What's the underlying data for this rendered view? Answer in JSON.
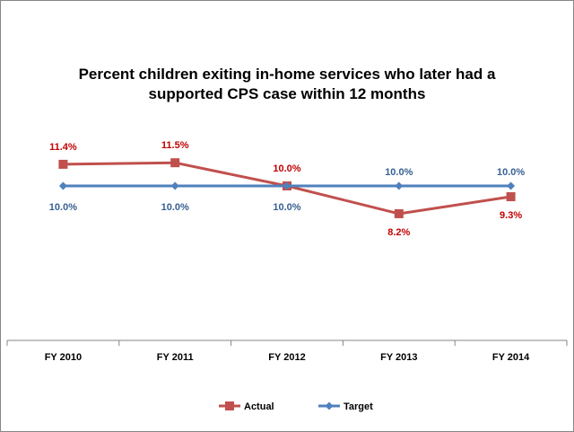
{
  "chart_data": {
    "type": "line",
    "title": "Percent children exiting in-home services who later had a supported CPS case within 12 months",
    "categories": [
      "FY 2010",
      "FY 2011",
      "FY 2012",
      "FY 2013",
      "FY 2014"
    ],
    "series": [
      {
        "name": "Actual",
        "values": [
          11.4,
          11.5,
          10.0,
          8.2,
          9.3
        ],
        "labels": [
          "11.4%",
          "11.5%",
          "10.0%",
          "8.2%",
          "9.3%"
        ],
        "color": "#C0504D",
        "label_color": "#C00000",
        "marker": "square"
      },
      {
        "name": "Target",
        "values": [
          10.0,
          10.0,
          10.0,
          10.0,
          10.0
        ],
        "labels": [
          "10.0%",
          "10.0%",
          "10.0%",
          "10.0%",
          "10.0%"
        ],
        "color": "#4F81BD",
        "label_color": "#376092",
        "marker": "diamond"
      }
    ],
    "xlabel": "",
    "ylabel": "",
    "ylim": [
      0,
      20
    ],
    "grid": false,
    "legend": "bottom"
  }
}
